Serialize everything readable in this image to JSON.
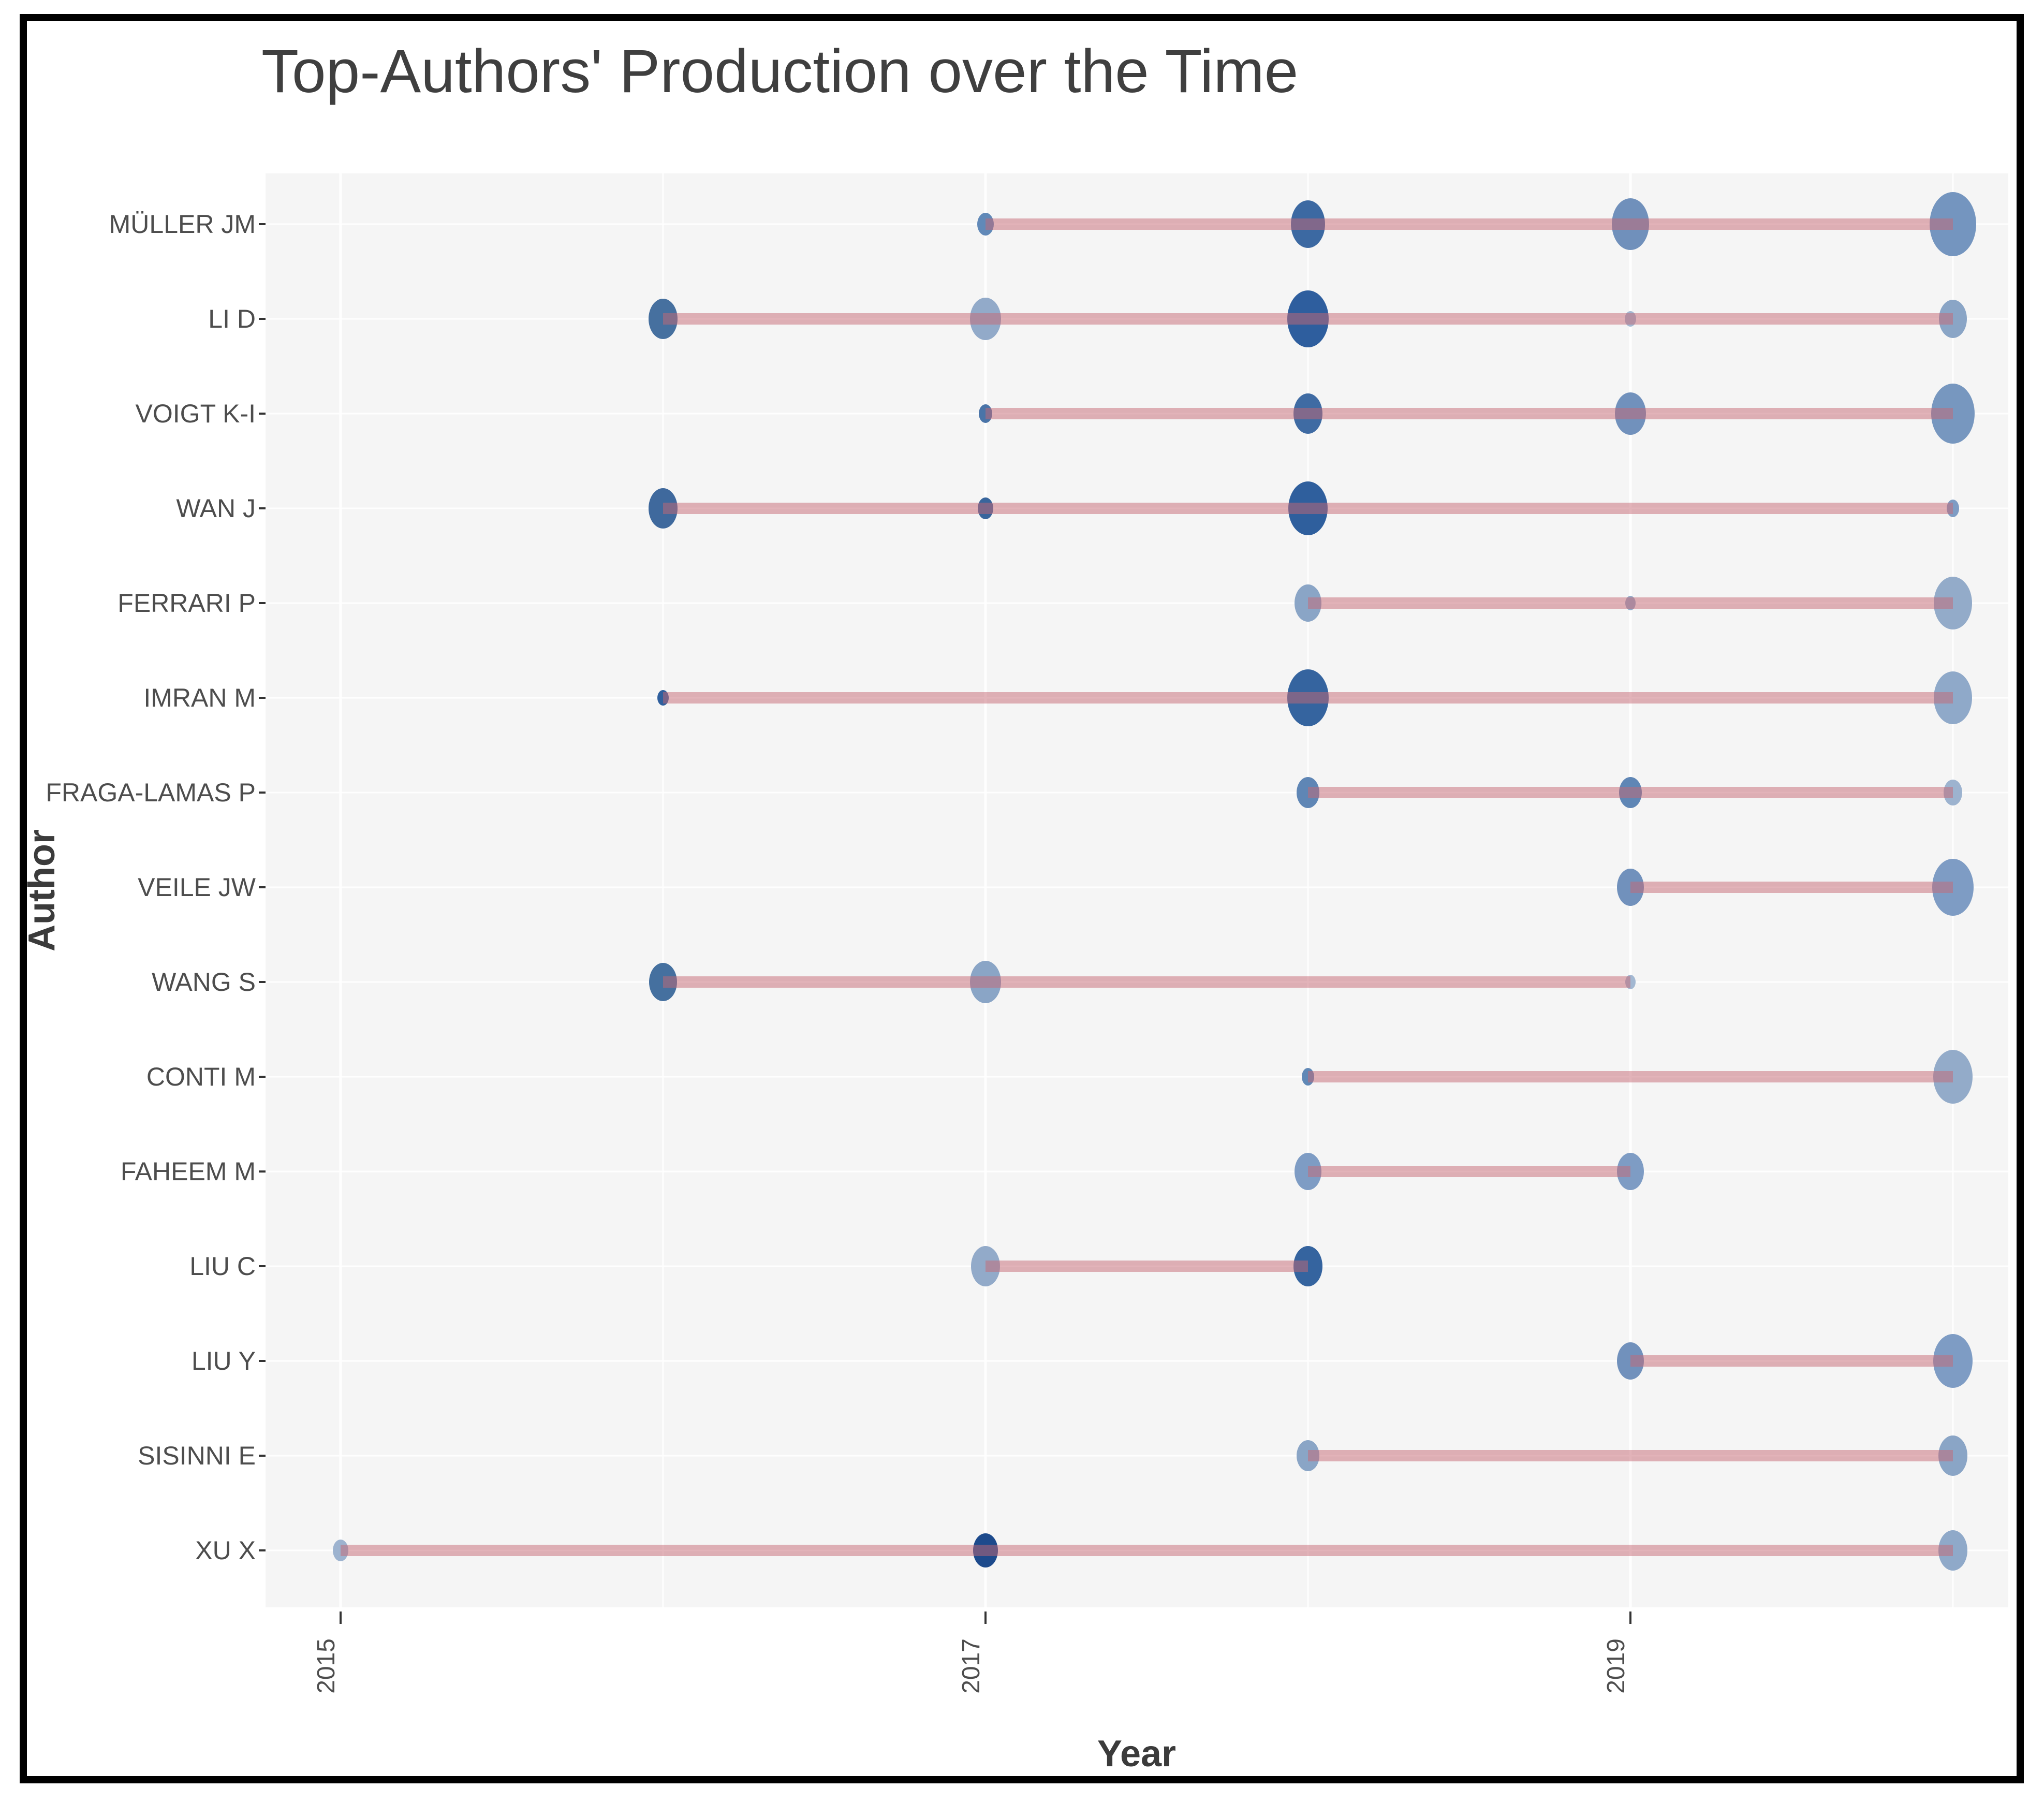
{
  "style": {
    "page_bg": "#ffffff",
    "frame_color": "#000000",
    "panel_bg": "#f5f5f5",
    "grid_color": "rgba(255,255,255,0.9)",
    "timeline_color": "rgba(198,104,115,0.5)",
    "title_color": "#3f3f3f",
    "tick_color": "#333333",
    "darkest_bubble": "#1d4a8c",
    "lightest_bubble": "#a3b8d2"
  },
  "chart_data": {
    "type": "scatter",
    "title": "Top-Authors' Production over the Time",
    "xlabel": "Year",
    "ylabel": "Author",
    "x_ticks": [
      "2015",
      "2017",
      "2019"
    ],
    "x_range": [
      2015,
      2020
    ],
    "grid": true,
    "legend": "none",
    "authors": [
      {
        "name": "MÜLLER JM",
        "active_span": [
          2017,
          2020
        ],
        "points": [
          {
            "year": 2017,
            "r": 16,
            "color": "#6189b8"
          },
          {
            "year": 2018,
            "r": 33,
            "color": "#3c69a2"
          },
          {
            "year": 2019,
            "r": 36,
            "color": "#7090bb"
          },
          {
            "year": 2020,
            "r": 45,
            "color": "#7495bf"
          }
        ]
      },
      {
        "name": "LI D",
        "active_span": [
          2016,
          2020
        ],
        "points": [
          {
            "year": 2016,
            "r": 28,
            "color": "#46709f"
          },
          {
            "year": 2017,
            "r": 30,
            "color": "#92aac9"
          },
          {
            "year": 2018,
            "r": 40,
            "color": "#2e5e9e"
          },
          {
            "year": 2019,
            "r": 11,
            "color": "#a3b8d2"
          },
          {
            "year": 2020,
            "r": 27,
            "color": "#8aa5c6"
          }
        ]
      },
      {
        "name": "VOIGT K-I",
        "active_span": [
          2017,
          2020
        ],
        "points": [
          {
            "year": 2017,
            "r": 13,
            "color": "#4a74a8"
          },
          {
            "year": 2018,
            "r": 28,
            "color": "#3f6ba3"
          },
          {
            "year": 2019,
            "r": 30,
            "color": "#7191bc"
          },
          {
            "year": 2020,
            "r": 42,
            "color": "#7797bf"
          }
        ]
      },
      {
        "name": "WAN J",
        "active_span": [
          2016,
          2020
        ],
        "points": [
          {
            "year": 2016,
            "r": 28,
            "color": "#3f699d"
          },
          {
            "year": 2017,
            "r": 15,
            "color": "#38659c"
          },
          {
            "year": 2018,
            "r": 38,
            "color": "#2f5f9d"
          },
          {
            "year": 2020,
            "r": 12,
            "color": "#7e9cc4"
          }
        ]
      },
      {
        "name": "FERRARI P",
        "active_span": [
          2018,
          2020
        ],
        "points": [
          {
            "year": 2018,
            "r": 26,
            "color": "#8aa5c6"
          },
          {
            "year": 2019,
            "r": 10,
            "color": "#93abc9"
          },
          {
            "year": 2020,
            "r": 37,
            "color": "#93abc9"
          }
        ]
      },
      {
        "name": "IMRAN M",
        "active_span": [
          2016,
          2020
        ],
        "points": [
          {
            "year": 2016,
            "r": 11,
            "color": "#2f5f9d"
          },
          {
            "year": 2018,
            "r": 40,
            "color": "#35649f"
          },
          {
            "year": 2020,
            "r": 37,
            "color": "#8fa9c9"
          }
        ]
      },
      {
        "name": "FRAGA-LAMAS P",
        "active_span": [
          2018,
          2020
        ],
        "points": [
          {
            "year": 2018,
            "r": 22,
            "color": "#5f86b5"
          },
          {
            "year": 2019,
            "r": 22,
            "color": "#5f86b5"
          },
          {
            "year": 2020,
            "r": 18,
            "color": "#9db3cf"
          }
        ]
      },
      {
        "name": "VEILE JW",
        "active_span": [
          2019,
          2020
        ],
        "points": [
          {
            "year": 2019,
            "r": 26,
            "color": "#7191bc"
          },
          {
            "year": 2020,
            "r": 40,
            "color": "#7e9cc4"
          }
        ]
      },
      {
        "name": "WANG S",
        "active_span": [
          2016,
          2019
        ],
        "points": [
          {
            "year": 2016,
            "r": 27,
            "color": "#45709f"
          },
          {
            "year": 2017,
            "r": 30,
            "color": "#8aa5c6"
          },
          {
            "year": 2019,
            "r": 10,
            "color": "#a3b8d2"
          }
        ]
      },
      {
        "name": "CONTI M",
        "active_span": [
          2018,
          2020
        ],
        "points": [
          {
            "year": 2018,
            "r": 12,
            "color": "#6088b6"
          },
          {
            "year": 2020,
            "r": 38,
            "color": "#93abc9"
          }
        ]
      },
      {
        "name": "FAHEEM M",
        "active_span": [
          2018,
          2019
        ],
        "points": [
          {
            "year": 2018,
            "r": 26,
            "color": "#7e9cc4"
          },
          {
            "year": 2019,
            "r": 26,
            "color": "#7e9cc4"
          }
        ]
      },
      {
        "name": "LIU C",
        "active_span": [
          2017,
          2018
        ],
        "points": [
          {
            "year": 2017,
            "r": 28,
            "color": "#92aac9"
          },
          {
            "year": 2018,
            "r": 28,
            "color": "#35649f"
          }
        ]
      },
      {
        "name": "LIU Y",
        "active_span": [
          2019,
          2020
        ],
        "points": [
          {
            "year": 2019,
            "r": 26,
            "color": "#7191bc"
          },
          {
            "year": 2020,
            "r": 38,
            "color": "#7e9cc4"
          }
        ]
      },
      {
        "name": "SISINNI E",
        "active_span": [
          2018,
          2020
        ],
        "points": [
          {
            "year": 2018,
            "r": 22,
            "color": "#8aa5c6"
          },
          {
            "year": 2020,
            "r": 28,
            "color": "#8aa5c6"
          }
        ]
      },
      {
        "name": "XU X",
        "active_span": [
          2015,
          2020
        ],
        "points": [
          {
            "year": 2015,
            "r": 15,
            "color": "#9db3cf"
          },
          {
            "year": 2017,
            "r": 24,
            "color": "#1d4a8c"
          },
          {
            "year": 2020,
            "r": 28,
            "color": "#8fa9c9"
          }
        ]
      }
    ]
  }
}
